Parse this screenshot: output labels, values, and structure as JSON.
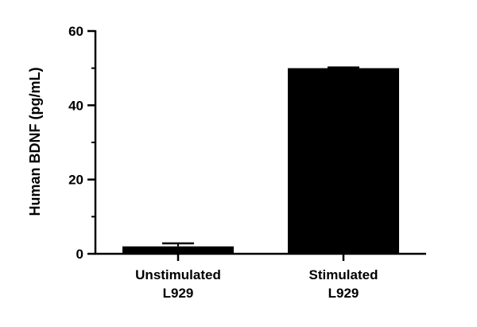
{
  "chart_data": {
    "type": "bar",
    "ylabel": "Human  BDNF  (pg/mL)",
    "xlabel": "",
    "ylim": [
      0,
      60
    ],
    "y_major_ticks": [
      0,
      20,
      40,
      60
    ],
    "y_minor_step": 10,
    "categories": [
      {
        "line1": "Unstimulated",
        "line2": "L929"
      },
      {
        "line1": "Stimulated",
        "line2": "L929"
      }
    ],
    "values": [
      2.0,
      50.0
    ],
    "error": [
      0.8,
      0.2
    ],
    "bar_color": "#000000"
  }
}
